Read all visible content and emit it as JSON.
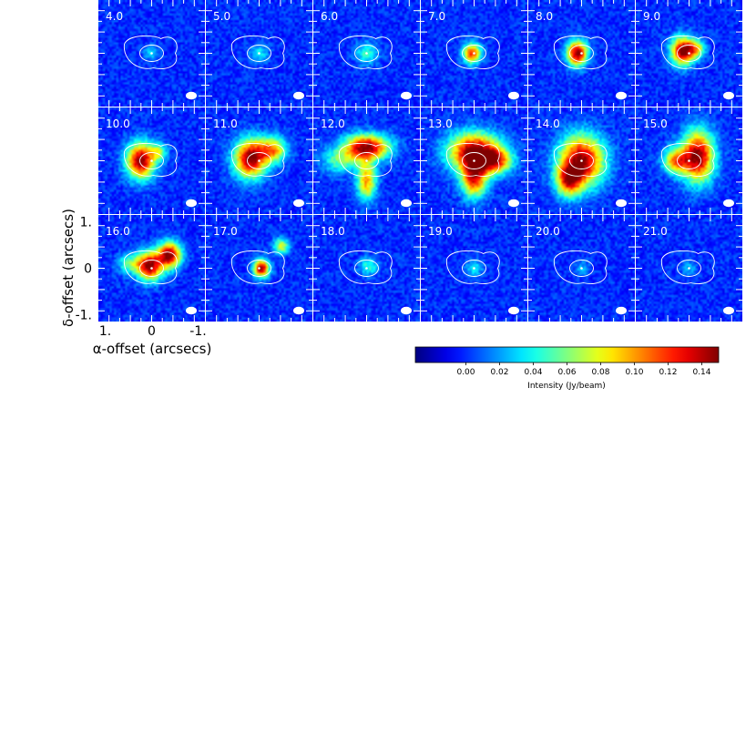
{
  "chart_data": {
    "type": "heatmap",
    "description_kind": "channel-map grid",
    "panels": [
      {
        "label": "4.0",
        "components": [
          {
            "dx": 0.0,
            "dy": 0.0,
            "amp": 0.03,
            "sx": 0.12,
            "sy": 0.12
          }
        ]
      },
      {
        "label": "5.0",
        "components": [
          {
            "dx": 0.0,
            "dy": 0.0,
            "amp": 0.035,
            "sx": 0.15,
            "sy": 0.15
          }
        ]
      },
      {
        "label": "6.0",
        "components": [
          {
            "dx": 0.0,
            "dy": 0.0,
            "amp": 0.045,
            "sx": 0.18,
            "sy": 0.18
          }
        ]
      },
      {
        "label": "7.0",
        "components": [
          {
            "dx": 0.05,
            "dy": 0.0,
            "amp": 0.12,
            "sx": 0.14,
            "sy": 0.16
          }
        ]
      },
      {
        "label": "8.0",
        "components": [
          {
            "dx": 0.1,
            "dy": 0.0,
            "amp": 0.15,
            "sx": 0.16,
            "sy": 0.2
          }
        ]
      },
      {
        "label": "9.0",
        "components": [
          {
            "dx": 0.15,
            "dy": 0.05,
            "amp": 0.15,
            "sx": 0.18,
            "sy": 0.22
          },
          {
            "dx": -0.15,
            "dy": 0.1,
            "amp": 0.08,
            "sx": 0.14,
            "sy": 0.14
          }
        ]
      },
      {
        "label": "10.0",
        "components": [
          {
            "dx": 0.25,
            "dy": 0.0,
            "amp": 0.15,
            "sx": 0.22,
            "sy": 0.28
          },
          {
            "dx": -0.15,
            "dy": 0.2,
            "amp": 0.06,
            "sx": 0.14,
            "sy": 0.14
          }
        ]
      },
      {
        "label": "11.0",
        "components": [
          {
            "dx": 0.2,
            "dy": 0.05,
            "amp": 0.15,
            "sx": 0.25,
            "sy": 0.3
          },
          {
            "dx": -0.3,
            "dy": 0.25,
            "amp": 0.1,
            "sx": 0.22,
            "sy": 0.2
          }
        ]
      },
      {
        "label": "12.0",
        "components": [
          {
            "dx": 0.0,
            "dy": 0.3,
            "amp": 0.15,
            "sx": 0.35,
            "sy": 0.2
          },
          {
            "dx": 0.0,
            "dy": -0.45,
            "amp": 0.1,
            "sx": 0.15,
            "sy": 0.3
          },
          {
            "dx": 0.6,
            "dy": 0.0,
            "amp": 0.05,
            "sx": 0.3,
            "sy": 0.2
          }
        ]
      },
      {
        "label": "13.0",
        "components": [
          {
            "dx": 0.0,
            "dy": 0.2,
            "amp": 0.15,
            "sx": 0.4,
            "sy": 0.3
          },
          {
            "dx": 0.0,
            "dy": -0.4,
            "amp": 0.12,
            "sx": 0.2,
            "sy": 0.3
          },
          {
            "dx": -0.5,
            "dy": 0.0,
            "amp": 0.1,
            "sx": 0.25,
            "sy": 0.2
          }
        ]
      },
      {
        "label": "14.0",
        "components": [
          {
            "dx": 0.0,
            "dy": 0.0,
            "amp": 0.15,
            "sx": 0.35,
            "sy": 0.4
          },
          {
            "dx": 0.3,
            "dy": -0.45,
            "amp": 0.1,
            "sx": 0.2,
            "sy": 0.25
          }
        ]
      },
      {
        "label": "15.0",
        "components": [
          {
            "dx": -0.2,
            "dy": 0.1,
            "amp": 0.15,
            "sx": 0.25,
            "sy": 0.4
          },
          {
            "dx": 0.3,
            "dy": 0.0,
            "amp": 0.1,
            "sx": 0.2,
            "sy": 0.2
          }
        ]
      },
      {
        "label": "16.0",
        "components": [
          {
            "dx": -0.4,
            "dy": 0.3,
            "amp": 0.15,
            "sx": 0.18,
            "sy": 0.2
          },
          {
            "dx": 0.05,
            "dy": 0.05,
            "amp": 0.15,
            "sx": 0.2,
            "sy": 0.22
          },
          {
            "dx": 0.5,
            "dy": 0.1,
            "amp": 0.05,
            "sx": 0.2,
            "sy": 0.15
          }
        ]
      },
      {
        "label": "17.0",
        "components": [
          {
            "dx": -0.05,
            "dy": 0.0,
            "amp": 0.15,
            "sx": 0.12,
            "sy": 0.14
          },
          {
            "dx": -0.5,
            "dy": 0.5,
            "amp": 0.08,
            "sx": 0.12,
            "sy": 0.12
          }
        ]
      },
      {
        "label": "18.0",
        "components": [
          {
            "dx": -0.05,
            "dy": 0.05,
            "amp": 0.045,
            "sx": 0.15,
            "sy": 0.15
          }
        ]
      },
      {
        "label": "19.0",
        "components": [
          {
            "dx": 0.0,
            "dy": 0.0,
            "amp": 0.035,
            "sx": 0.14,
            "sy": 0.14
          }
        ]
      },
      {
        "label": "20.0",
        "components": [
          {
            "dx": 0.0,
            "dy": 0.0,
            "amp": 0.025,
            "sx": 0.12,
            "sy": 0.12
          }
        ]
      },
      {
        "label": "21.0",
        "components": [
          {
            "dx": 0.0,
            "dy": 0.0,
            "amp": 0.025,
            "sx": 0.12,
            "sy": 0.12
          }
        ]
      }
    ],
    "grid": {
      "rows": 3,
      "cols": 6
    },
    "xlabel": "α-offset (arcsecs)",
    "ylabel": "δ-offset (arcsecs)",
    "x_ticks": [
      "1.",
      "0",
      "-1."
    ],
    "y_ticks": [
      "1.",
      "0",
      "-1."
    ],
    "xlim": [
      1.2,
      -1.2
    ],
    "ylim": [
      -1.2,
      1.2
    ],
    "colorbar": {
      "label": "Intensity (Jy/beam)",
      "ticks": [
        "0.00",
        "0.02",
        "0.04",
        "0.06",
        "0.08",
        "0.10",
        "0.12",
        "0.14"
      ],
      "tick_values": [
        0.0,
        0.02,
        0.04,
        0.06,
        0.08,
        0.1,
        0.12,
        0.14
      ],
      "range": [
        -0.03,
        0.15
      ],
      "colormap": "jet"
    }
  }
}
